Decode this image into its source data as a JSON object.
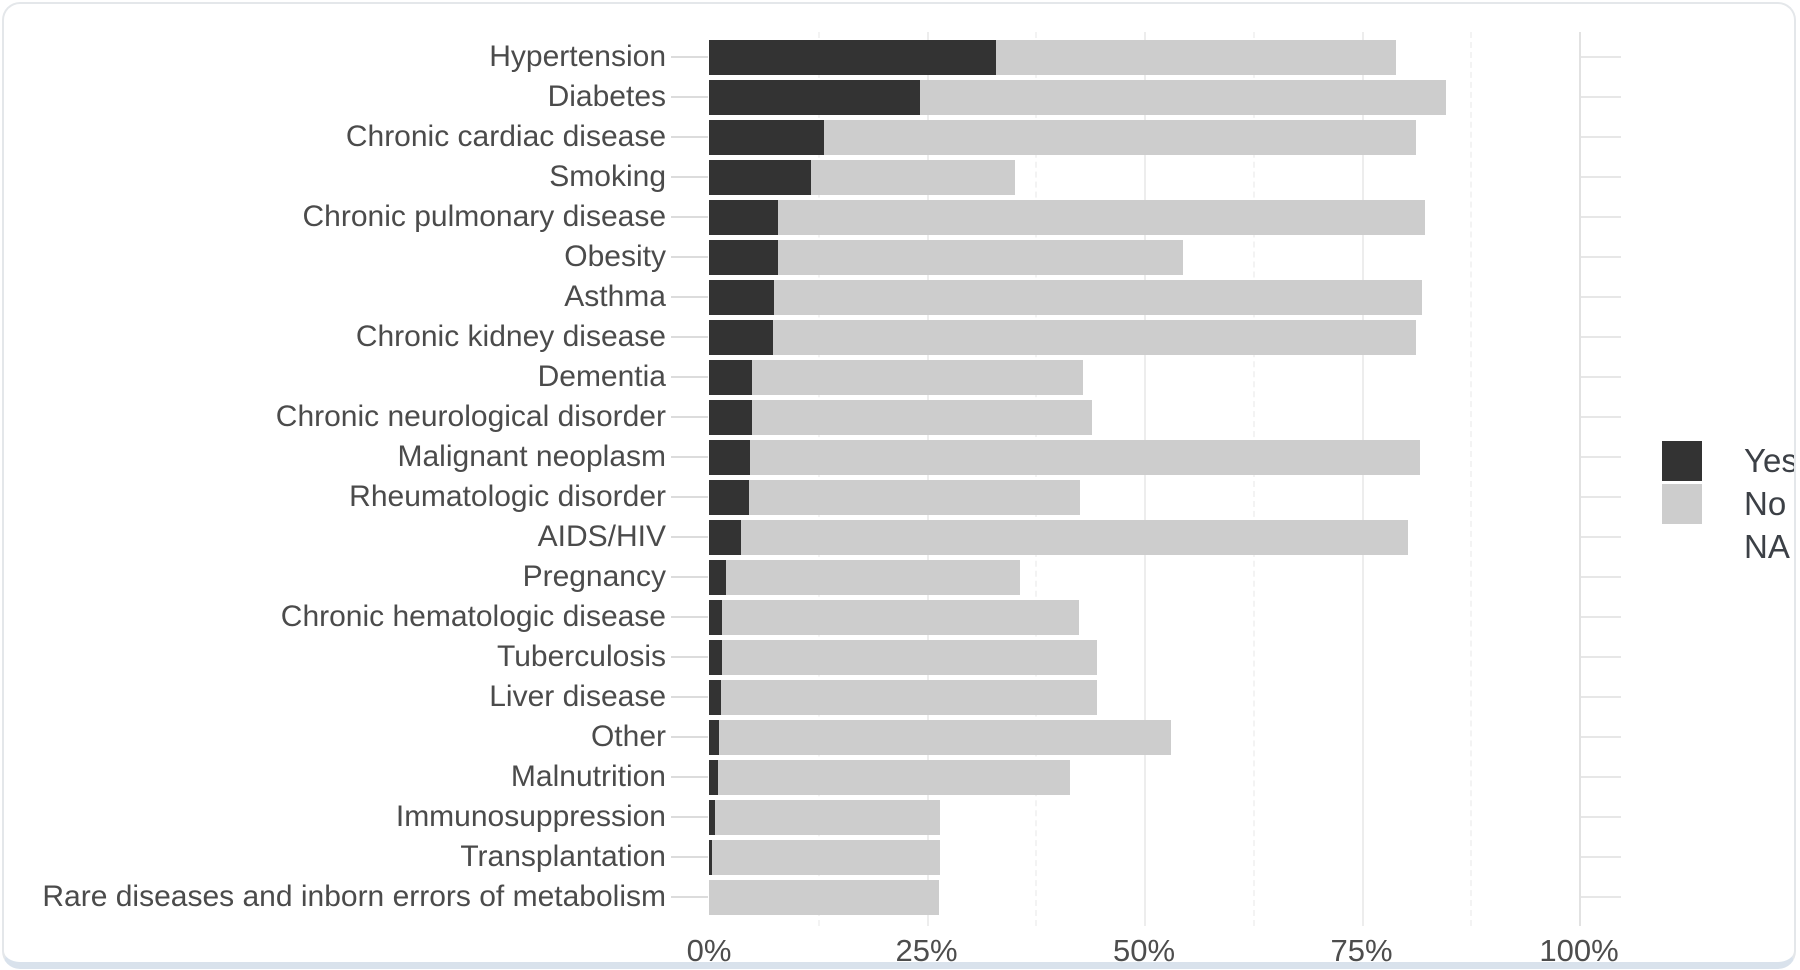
{
  "chart_data": {
    "type": "bar",
    "orientation": "horizontal",
    "stacked": true,
    "title": "",
    "xlabel": "",
    "ylabel": "",
    "x_axis": {
      "unit": "percent",
      "range": [
        0,
        100
      ],
      "tick_values": [
        0,
        25,
        50,
        75,
        100
      ],
      "tick_labels": [
        "0%",
        "25%",
        "50%",
        "75%",
        "100%"
      ],
      "minor_grid_step": 12.5
    },
    "categories": [
      "Hypertension",
      "Diabetes",
      "Chronic cardiac disease",
      "Smoking",
      "Chronic pulmonary disease",
      "Obesity",
      "Asthma",
      "Chronic kidney disease",
      "Dementia",
      "Chronic neurological disorder",
      "Malignant neoplasm",
      "Rheumatologic disorder",
      "AIDS/HIV",
      "Pregnancy",
      "Chronic hematologic disease",
      "Tuberculosis",
      "Liver disease",
      "Other",
      "Malnutrition",
      "Immunosuppression",
      "Transplantation",
      "Rare diseases and inborn errors of metabolism"
    ],
    "series": [
      {
        "name": "Yes",
        "color": "#333333",
        "values": [
          33.0,
          24.2,
          13.2,
          11.7,
          7.9,
          7.9,
          7.5,
          7.4,
          4.9,
          4.9,
          4.7,
          4.6,
          3.7,
          2.0,
          1.5,
          1.5,
          1.4,
          1.2,
          1.0,
          0.7,
          0.3,
          0.0
        ]
      },
      {
        "name": "No",
        "color": "#cdcdcd",
        "values": [
          46.0,
          60.5,
          68.1,
          23.5,
          74.4,
          46.6,
          74.5,
          73.9,
          38.1,
          39.1,
          77.0,
          38.0,
          76.6,
          33.7,
          41.0,
          43.1,
          43.2,
          51.9,
          40.5,
          25.8,
          26.3,
          26.4
        ]
      }
    ],
    "legend": {
      "position": "right",
      "entries": [
        {
          "label": "Yes",
          "color": "#333333"
        },
        {
          "label": "No",
          "color": "#cdcdcd"
        },
        {
          "label": "NA",
          "color": "#ffffff"
        }
      ]
    },
    "grid": "vertical-only"
  },
  "layout_colors": {
    "axis_text": "#4d4d4d",
    "category_text": "#4b4b4b",
    "legend_text": "#3c4046",
    "gridline_major": "#ededed",
    "gridline_minor": "#f3f3f3",
    "panel_right_edge": "#e2e2e2",
    "card_border": "#e4e7ea",
    "card_border_bottom": "#d9e2ec"
  }
}
